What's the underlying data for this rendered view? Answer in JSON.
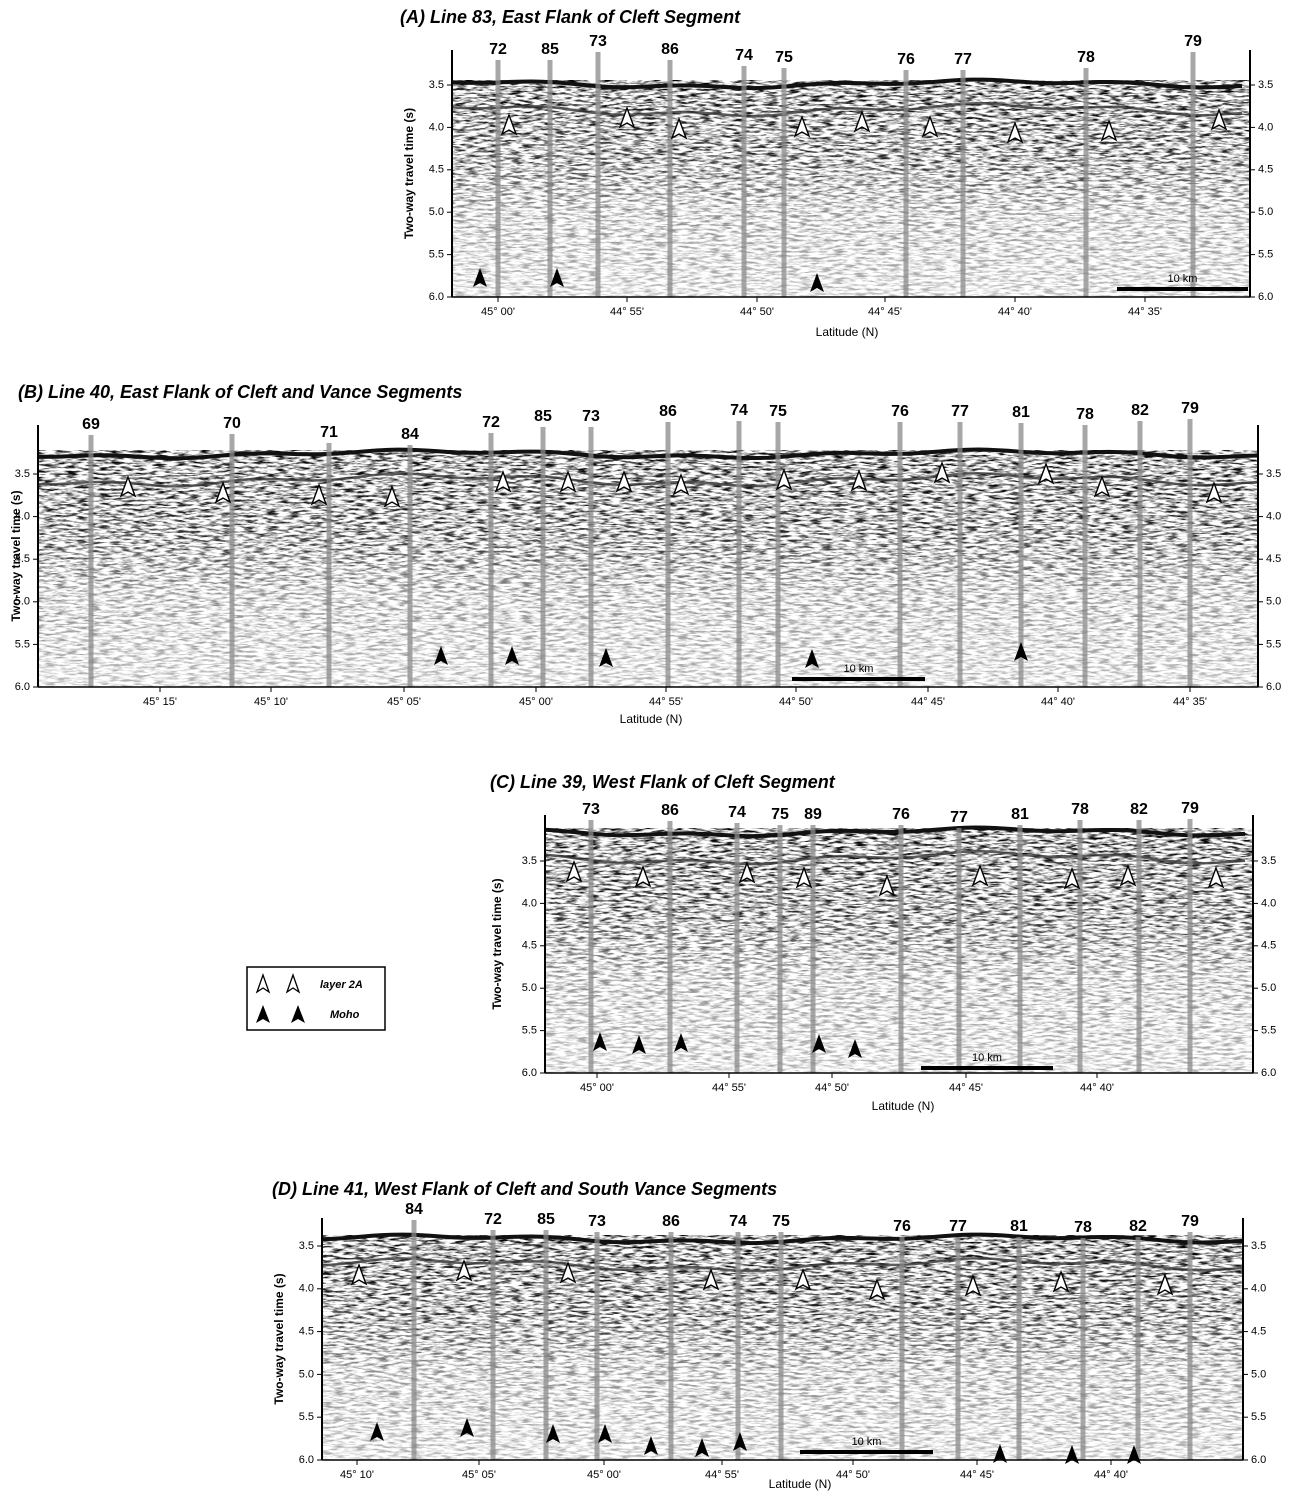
{
  "panels": [
    {
      "title": "(A) Line 83, East Flank of Cleft Segment",
      "y_axis_label": "Two-way travel time (s)",
      "x_axis_label": "Latitude (N)",
      "y_ticks": [
        "3.5",
        "4.0",
        "4.5",
        "5.0",
        "5.5",
        "6.0"
      ],
      "x_ticks": [
        "45° 00'",
        "44° 55'",
        "44° 50'",
        "44° 45'",
        "44° 40'",
        "44° 35'"
      ],
      "line_labels": [
        "72",
        "85",
        "73",
        "86",
        "74",
        "75",
        "76",
        "77",
        "78",
        "79"
      ],
      "scale_bar": "10 km"
    },
    {
      "title": "(B) Line 40, East Flank of Cleft and Vance Segments",
      "y_axis_label": "Two-way travel time (s)",
      "x_axis_label": "Latitude (N)",
      "y_ticks": [
        "3.5",
        "4.0",
        "4.5",
        "5.0",
        "5.5",
        "6.0"
      ],
      "x_ticks": [
        "45° 15'",
        "45° 10'",
        "45° 05'",
        "45° 00'",
        "44° 55'",
        "44° 50'",
        "44° 45'",
        "44° 40'",
        "44° 35'"
      ],
      "line_labels": [
        "69",
        "70",
        "71",
        "84",
        "72",
        "85",
        "73",
        "86",
        "74",
        "75",
        "76",
        "77",
        "81",
        "78",
        "82",
        "79"
      ],
      "scale_bar": "10 km"
    },
    {
      "title": "(C) Line 39, West Flank of Cleft Segment",
      "y_axis_label": "Two-way travel time (s)",
      "x_axis_label": "Latitude (N)",
      "y_ticks": [
        "3.5",
        "4.0",
        "4.5",
        "5.0",
        "5.5",
        "6.0"
      ],
      "x_ticks": [
        "45° 00'",
        "44° 55'",
        "44° 50'",
        "44° 45'",
        "44° 40'"
      ],
      "line_labels": [
        "73",
        "86",
        "74",
        "75",
        "89",
        "76",
        "77",
        "81",
        "78",
        "82",
        "79"
      ],
      "scale_bar": "10 km"
    },
    {
      "title": "(D) Line 41, West Flank of Cleft and South Vance Segments",
      "y_axis_label": "Two-way travel time (s)",
      "x_axis_label": "Latitude (N)",
      "y_ticks": [
        "3.5",
        "4.0",
        "4.5",
        "5.0",
        "5.5",
        "6.0"
      ],
      "x_ticks": [
        "45° 10'",
        "45° 05'",
        "45° 00'",
        "44° 55'",
        "44° 50'",
        "44° 45'",
        "44° 40'"
      ],
      "line_labels": [
        "84",
        "72",
        "85",
        "73",
        "86",
        "74",
        "75",
        "76",
        "77",
        "81",
        "78",
        "82",
        "79"
      ],
      "scale_bar": "10 km"
    }
  ],
  "legend": {
    "items": [
      "layer 2A",
      "Moho"
    ]
  }
}
